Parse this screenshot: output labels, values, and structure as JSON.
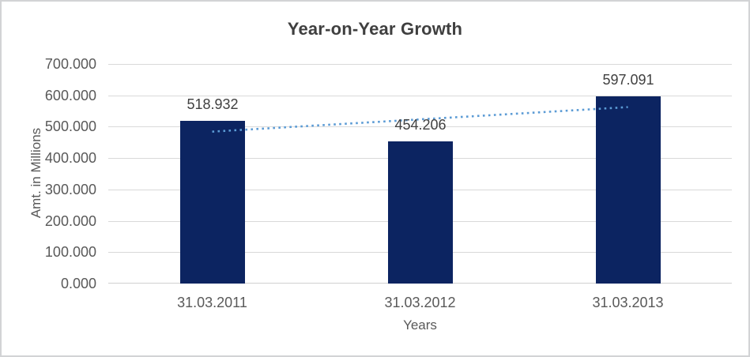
{
  "title": "Year-on-Year Growth",
  "colors": {
    "bar": "#0c2461",
    "trendline": "#5b9bd5",
    "gridline": "#d9d9d9",
    "axis_line": "#d0d0d0",
    "tick_text": "#595959",
    "data_label_text": "#404040",
    "title_text": "#3f3f3f",
    "frame_border": "#d2d3d5"
  },
  "chart_data": {
    "type": "bar",
    "title": "Year-on-Year Growth",
    "xlabel": "Years",
    "ylabel": "Amt. in Millions",
    "categories": [
      "31.03.2011",
      "31.03.2012",
      "31.03.2013"
    ],
    "values": [
      518.932,
      454.206,
      597.091
    ],
    "data_labels": [
      "518.932",
      "454.206",
      "597.091"
    ],
    "ylim": [
      0,
      700
    ],
    "ytick_step": 100,
    "ytick_labels": [
      "0.000",
      "100.000",
      "200.000",
      "300.000",
      "400.000",
      "500.000",
      "600.000",
      "700.000"
    ],
    "grid": true,
    "legend": false,
    "trendline": {
      "kind": "linear",
      "style": "dotted",
      "color": "#5b9bd5",
      "endpoint_values": [
        484.33,
        562.49
      ]
    }
  }
}
